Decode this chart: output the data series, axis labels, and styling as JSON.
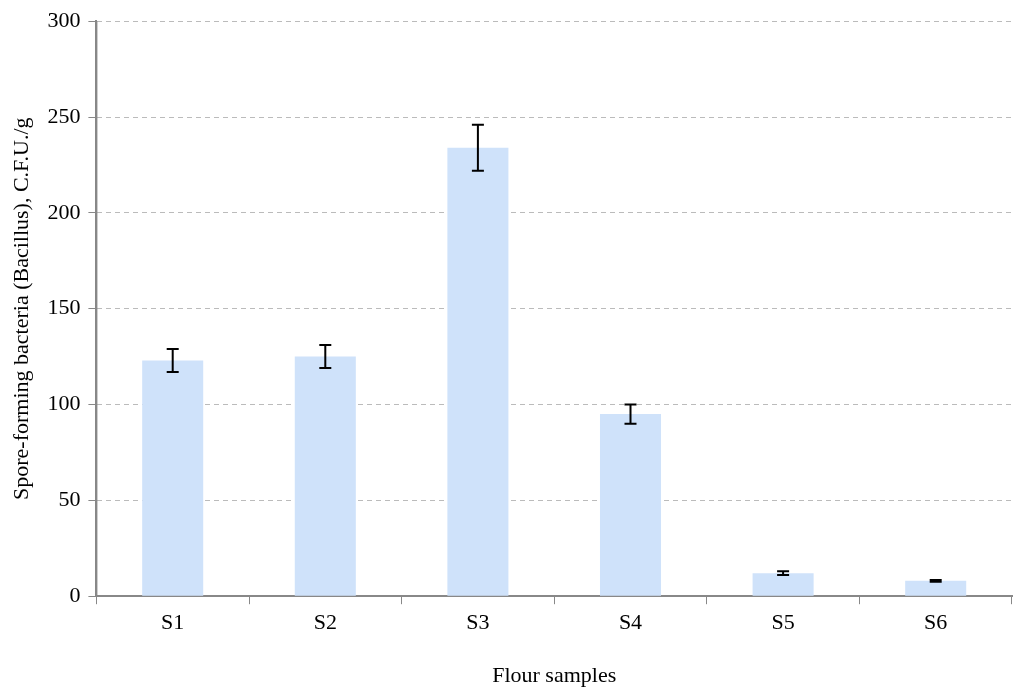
{
  "chart_data": {
    "type": "bar",
    "xlabel": "Flour samples",
    "ylabel": "Spore-forming bacteria (Bacillus), C.F.U./g",
    "categories": [
      "S1",
      "S2",
      "S3",
      "S4",
      "S5",
      "S6"
    ],
    "values": [
      123,
      125,
      234,
      95,
      12,
      8
    ],
    "errors": [
      6,
      6,
      12,
      5,
      1,
      0.5
    ],
    "color": "#cfe2fa",
    "ylim": [
      0,
      300
    ],
    "yticks": [
      0,
      50,
      100,
      150,
      200,
      250,
      300
    ],
    "grid": "y"
  }
}
